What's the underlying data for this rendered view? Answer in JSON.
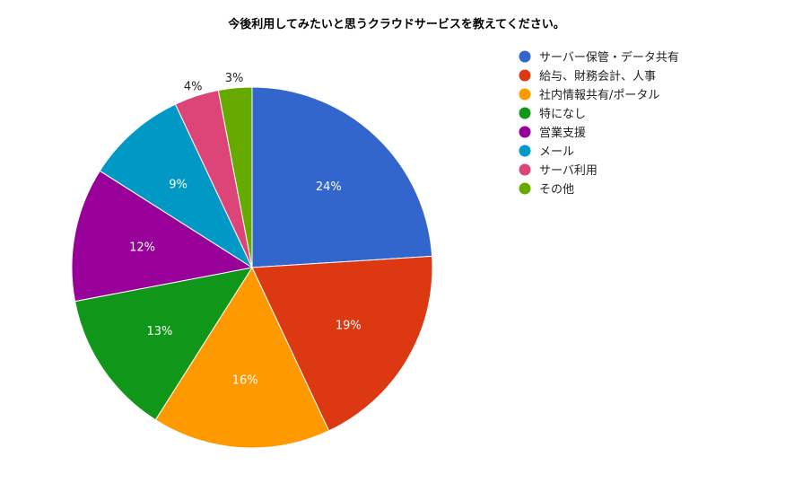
{
  "chart_data": {
    "type": "pie",
    "title": "今後利用してみたいと思うクラウドサービスを教えてください。",
    "legend_position": "right",
    "slices": [
      {
        "label": "サーバー保管・データ共有",
        "value": 24,
        "display": "24%",
        "color": "#3366cc"
      },
      {
        "label": "給与、財務会計、人事",
        "value": 19,
        "display": "19%",
        "color": "#dc3912"
      },
      {
        "label": "社内情報共有/ポータル",
        "value": 16,
        "display": "16%",
        "color": "#ff9900"
      },
      {
        "label": "特になし",
        "value": 13,
        "display": "13%",
        "color": "#109618"
      },
      {
        "label": "営業支援",
        "value": 12,
        "display": "12%",
        "color": "#990099"
      },
      {
        "label": "メール",
        "value": 9,
        "display": "9%",
        "color": "#0099c6"
      },
      {
        "label": "サーバ利用",
        "value": 4,
        "display": "4%",
        "color": "#dd4477"
      },
      {
        "label": "その他",
        "value": 3,
        "display": "3%",
        "color": "#66aa00"
      }
    ]
  }
}
